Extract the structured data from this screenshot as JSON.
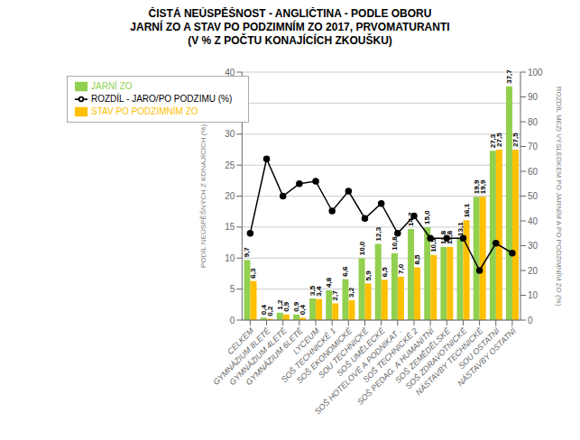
{
  "chart_data": {
    "type": "bar",
    "title": "ČISTÁ NEÚSPĚŠNOST - ANGLIČTINA - PODLE OBORU\nJARNÍ ZO A STAV PO PODZIMNÍM ZO 2017, PRVOMATURANTI\n(V % Z POČTU KONAJÍCÍCH ZKOUŠKU)",
    "categories": [
      "CELKEM",
      "GYMNÁZIUM 8LETÉ",
      "GYMNÁZIUM 4LETÉ",
      "GYMNÁZIUM 6LETÉ",
      "LYCEUM",
      "SOŠ TECHNICKÉ 1",
      "SOŠ EKONOMICKÉ",
      "SOU TECHNICKÉ",
      "SOŠ UMĚLECKÉ",
      "SOŠ HOTELOVÉ A PODNIKAT .",
      "SOŠ TECHNICKÉ 2",
      "SOŠ PEDAG. A HUMANITNÍ",
      "SOŠ ZEMĚDĚLSKÉ",
      "SOŠ ZDRAVOTNICKÉ",
      "NÁSTAVBY TECHNICKÉ",
      "SOU OSTATNÍ",
      "NÁSTAVBY OSTATNÍ"
    ],
    "series": [
      {
        "name": "JARNÍ ZO",
        "type": "bar",
        "color": "#92D050",
        "data_labels": true,
        "values": [
          9.7,
          0.4,
          1.2,
          0.9,
          3.5,
          4.8,
          6.6,
          10.0,
          12.3,
          10.8,
          14.7,
          15.0,
          11.8,
          13.1,
          19.9,
          27.3,
          37.7
        ],
        "value_labels": [
          "9,7",
          "0,4",
          "1,2",
          "0,9",
          "3,5",
          "4,8",
          "6,6",
          "10,0",
          "12,3",
          "10,8",
          "14,7",
          "15,0",
          "11,8",
          "13,1",
          "19,9",
          "27,3",
          "37,7"
        ]
      },
      {
        "name": "STAV PO PODZIMNÍM ZO",
        "type": "bar",
        "color": "#FFC000",
        "data_labels": true,
        "values": [
          6.3,
          0.2,
          0.9,
          0.4,
          3.4,
          2.7,
          3.2,
          5.9,
          6.5,
          7.0,
          8.5,
          10.5,
          11.8,
          16.1,
          19.9,
          27.5,
          27.5
        ],
        "value_labels": [
          "6,3",
          "0,2",
          "0,9",
          "0,4",
          "3,4",
          "2,7",
          "3,2",
          "5,9",
          "6,5",
          "7,0",
          "8,5",
          "10,5",
          "11,8",
          "16,1",
          "19,9",
          "27,5",
          "27,5"
        ]
      },
      {
        "name": "ROZDÍL - JARO/PO PODZIMU (%)",
        "type": "line",
        "axis": "y2",
        "color": "#000000",
        "marker": "circle",
        "values": [
          35,
          65,
          50,
          55,
          56,
          44,
          52,
          41,
          47,
          35,
          42,
          33,
          33,
          33,
          20,
          31,
          27
        ]
      }
    ],
    "ylabel": "PODÍL NEÚSPĚŠNÝCH Z KONAJÍCÍCH (%)",
    "y2label": "ROZDÍL MEZI VÝSLEDKEM PO JARNÍM A PO PODZIMNÍM ZO (%)",
    "ylim": [
      0,
      40
    ],
    "yticks": [
      0,
      5,
      10,
      15,
      20,
      25,
      30,
      35,
      40
    ],
    "y2lim": [
      0,
      100
    ],
    "y2ticks": [
      0,
      10,
      20,
      30,
      40,
      50,
      60,
      70,
      80,
      90,
      100
    ],
    "grid": true,
    "legend": "upper left"
  }
}
